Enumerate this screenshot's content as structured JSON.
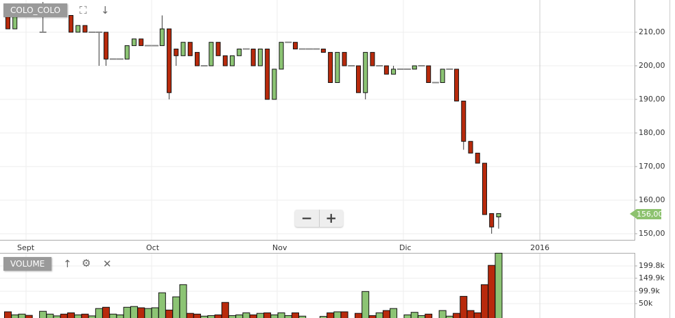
{
  "symbol": "COLO_COLO",
  "volume_label": "VOLUME",
  "icons": {
    "fullscreen": "fullscreen-icon",
    "download": "arrow-down-icon",
    "move_up": "arrow-up-icon",
    "settings": "gear-icon",
    "close": "close-icon"
  },
  "zoom": {
    "minus": "−",
    "plus": "+"
  },
  "last_price": "156,00",
  "colors": {
    "up": "#8cc474",
    "down": "#b82a0c",
    "last_price_bg": "#8dc26f"
  },
  "chart_data": [
    {
      "type": "candlestick",
      "x_tick_labels": [
        "Sept",
        "Oct",
        "Nov",
        "Dic",
        "2016"
      ],
      "y_tick_labels": [
        "210,00",
        "200,00",
        "190,00",
        "180,00",
        "170,00",
        "160,00",
        "150,00"
      ],
      "ylim": [
        148,
        220
      ],
      "grid": true,
      "candles_ohlc": [
        [
          215,
          215,
          211,
          211
        ],
        [
          211,
          215,
          211,
          215
        ],
        null,
        null,
        null,
        [
          210,
          219,
          210,
          210
        ],
        null,
        null,
        null,
        [
          215,
          215,
          210,
          210
        ],
        [
          210,
          212,
          210,
          212
        ],
        [
          212,
          212,
          210,
          210
        ],
        [
          210,
          210,
          210,
          210
        ],
        [
          210,
          210,
          200,
          210
        ],
        [
          210,
          210,
          200,
          202
        ],
        [
          202,
          202,
          202,
          202
        ],
        [
          202,
          202,
          202,
          202
        ],
        [
          202,
          206,
          202,
          206
        ],
        [
          206,
          208,
          206,
          208
        ],
        [
          208,
          208,
          206,
          206
        ],
        [
          206,
          206,
          206,
          206
        ],
        [
          206,
          206,
          206,
          206
        ],
        [
          206,
          215,
          206,
          211
        ],
        [
          211,
          211,
          190,
          192
        ],
        [
          205,
          205,
          200,
          203
        ],
        [
          203,
          207,
          203,
          207
        ],
        [
          207,
          207,
          203,
          203
        ],
        [
          204,
          204,
          200,
          200
        ],
        [
          200,
          200,
          200,
          200
        ],
        [
          200,
          207,
          200,
          207
        ],
        [
          207,
          207,
          203,
          203
        ],
        [
          203,
          203,
          200,
          200
        ],
        [
          200,
          203,
          200,
          203
        ],
        [
          203,
          205,
          203,
          205
        ],
        [
          205,
          205,
          205,
          205
        ],
        [
          205,
          205,
          200,
          200
        ],
        [
          200,
          205,
          200,
          205
        ],
        [
          205,
          205,
          190,
          190
        ],
        [
          190,
          199,
          190,
          199
        ],
        [
          199,
          207,
          199,
          207
        ],
        [
          207,
          207,
          207,
          207
        ],
        [
          207,
          207,
          205,
          205
        ],
        [
          205,
          205,
          205,
          205
        ],
        [
          205,
          205,
          205,
          205
        ],
        [
          205,
          205,
          205,
          205
        ],
        [
          205,
          205,
          204,
          204
        ],
        [
          204,
          204,
          195,
          195
        ],
        [
          195,
          204,
          195,
          204
        ],
        [
          204,
          204,
          200,
          200
        ],
        [
          200,
          200,
          200,
          200
        ],
        [
          200,
          200,
          192,
          192
        ],
        [
          192,
          204,
          190,
          204
        ],
        [
          204,
          204,
          200,
          200
        ],
        [
          200,
          200,
          200,
          200
        ],
        [
          200,
          200,
          197.5,
          197.5
        ],
        [
          197.5,
          200,
          197.5,
          199
        ],
        [
          199,
          199,
          199,
          199
        ],
        [
          199,
          199,
          199,
          199
        ],
        [
          199,
          200,
          199,
          200
        ],
        [
          200,
          200,
          200,
          200
        ],
        [
          200,
          200,
          195,
          195
        ],
        [
          195,
          195,
          195,
          195
        ],
        [
          195,
          199,
          195,
          199
        ],
        [
          199,
          199,
          199,
          199
        ],
        [
          199,
          199,
          189.5,
          189.5
        ],
        [
          189.5,
          189.5,
          175,
          177.5
        ],
        [
          177.5,
          177.5,
          174,
          174
        ],
        [
          174,
          174,
          171,
          171
        ],
        [
          171,
          171,
          155.7,
          155.7
        ],
        [
          156,
          156,
          150,
          152
        ],
        [
          155,
          156,
          151.5,
          156
        ]
      ]
    },
    {
      "type": "bar",
      "series_label": "VOLUME",
      "y_tick_labels": [
        "199.8k",
        "149.9k",
        "99.9k",
        "50k"
      ],
      "ylim": [
        0,
        250000
      ],
      "volumes": [
        19000,
        7000,
        10000,
        5000,
        0,
        21000,
        10000,
        3000,
        10000,
        15000,
        7000,
        10000,
        3000,
        32000,
        37000,
        10000,
        7000,
        37000,
        40000,
        35000,
        32000,
        35000,
        94000,
        26000,
        78000,
        126000,
        13000,
        10000,
        2000,
        4000,
        7000,
        56000,
        4000,
        7000,
        15000,
        7000,
        13000,
        15000,
        7000,
        15000,
        4000,
        15000,
        2000,
        0,
        0,
        1000,
        15000,
        19000,
        19000,
        0,
        13000,
        99000,
        4000,
        15000,
        24000,
        32000,
        0,
        7000,
        17000,
        4000,
        10000,
        0,
        24000,
        2000,
        13000,
        80000,
        24000,
        15000,
        126000,
        202000,
        250000
      ],
      "direction": [
        "d",
        "u",
        "u",
        "d",
        "u",
        "u",
        "u",
        "u",
        "d",
        "d",
        "u",
        "d",
        "u",
        "u",
        "d",
        "u",
        "u",
        "u",
        "u",
        "d",
        "u",
        "u",
        "u",
        "d",
        "u",
        "u",
        "d",
        "d",
        "u",
        "u",
        "d",
        "d",
        "u",
        "u",
        "u",
        "d",
        "u",
        "d",
        "u",
        "u",
        "u",
        "d",
        "u",
        "u",
        "u",
        "u",
        "d",
        "u",
        "d",
        "u",
        "d",
        "u",
        "d",
        "u",
        "d",
        "u",
        "u",
        "u",
        "u",
        "u",
        "d",
        "u",
        "u",
        "u",
        "d",
        "d",
        "d",
        "d",
        "d",
        "d",
        "u"
      ]
    }
  ]
}
